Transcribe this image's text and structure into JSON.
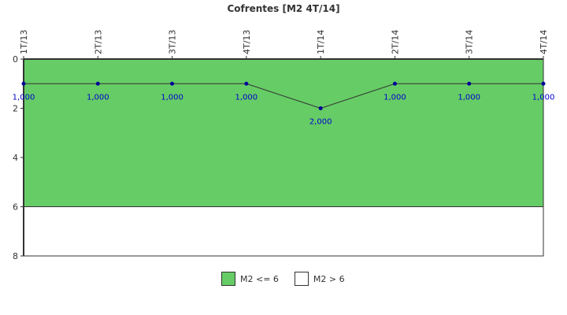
{
  "chart_data": {
    "type": "line",
    "title": "Cofrentes [M2 4T/14]",
    "categories": [
      "1T/13",
      "2T/13",
      "3T/13",
      "4T/13",
      "1T/14",
      "2T/14",
      "3T/14",
      "4T/14"
    ],
    "values": [
      1,
      1,
      1,
      1,
      2,
      1,
      1,
      1
    ],
    "data_labels": [
      "1,000",
      "1,000",
      "1,000",
      "1,000",
      "2,000",
      "1,000",
      "1,000",
      "1,000"
    ],
    "ylim": [
      0,
      8
    ],
    "y_inverted": true,
    "yticks": [
      0,
      2,
      4,
      6,
      8
    ],
    "x_axis_position": "top",
    "bands": [
      {
        "name": "M2 <= 6",
        "from": 0,
        "to": 6,
        "color": "#66cc66"
      },
      {
        "name": "M2 > 6",
        "from": 6,
        "to": 8,
        "color": "#ffffff"
      }
    ],
    "line_color": "#333333",
    "marker_color": "#000099",
    "grid": false,
    "legend": "bottom"
  },
  "legend": {
    "items": [
      {
        "label": "M2 <= 6",
        "color": "#66cc66"
      },
      {
        "label": "M2 > 6",
        "color": "#ffffff"
      }
    ]
  }
}
